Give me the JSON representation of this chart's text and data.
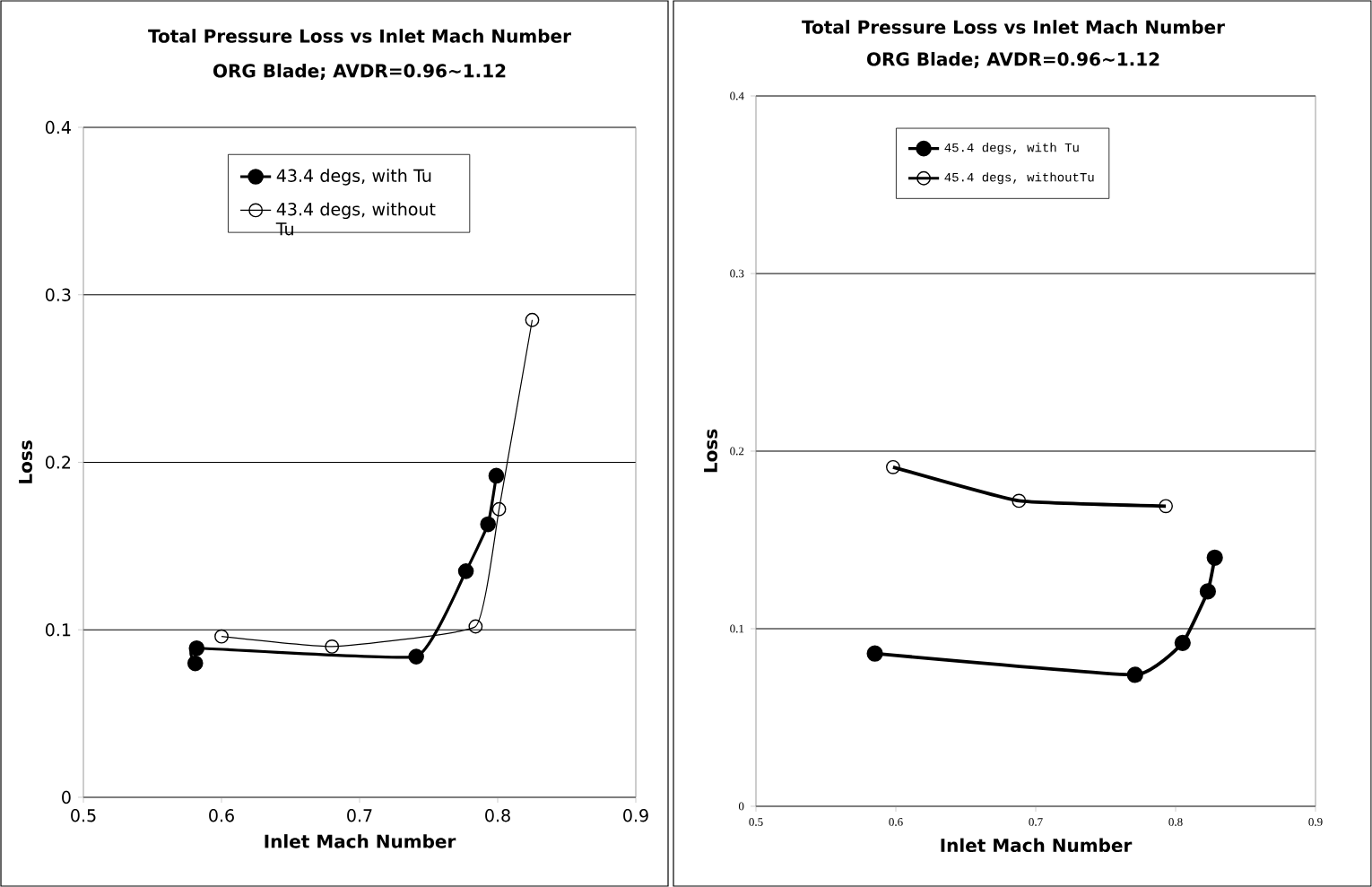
{
  "chart_data": [
    {
      "type": "line",
      "title": "Total Pressure Loss vs Inlet Mach Number",
      "subtitle": "ORG Blade; AVDR=0.96~1.12",
      "xlabel": "Inlet Mach Number",
      "ylabel": "Loss",
      "xlim": [
        0.5,
        0.9
      ],
      "ylim": [
        0,
        0.4
      ],
      "xticks": [
        0.5,
        0.6,
        0.7,
        0.8,
        0.9
      ],
      "yticks": [
        0,
        0.1,
        0.2,
        0.3,
        0.4
      ],
      "grid": "y",
      "legend": "top right",
      "marker": "circle",
      "series": [
        {
          "name": "43.4 degs, with Tu",
          "color": "#000000",
          "x": [
            0.581,
            0.582,
            0.741,
            0.777,
            0.793,
            0.799
          ],
          "values": [
            0.08,
            0.089,
            0.084,
            0.135,
            0.163,
            0.192
          ]
        },
        {
          "name": "43.4 degs, without Tu",
          "color": "#000000",
          "x": [
            0.6,
            0.68,
            0.784,
            0.801,
            0.825
          ],
          "values": [
            0.096,
            0.09,
            0.102,
            0.172,
            0.285
          ]
        }
      ]
    },
    {
      "type": "line",
      "title": "Total Pressure Loss vs Inlet Mach Number",
      "subtitle": "ORG Blade; AVDR=0.96~1.12",
      "xlabel": "Inlet Mach Number",
      "ylabel": "Loss",
      "xlim": [
        0.5,
        0.9
      ],
      "ylim": [
        0,
        0.4
      ],
      "xticks": [
        0.5,
        0.6,
        0.7,
        0.8,
        0.9
      ],
      "yticks": [
        0,
        0.1,
        0.2,
        0.3,
        0.4
      ],
      "grid": "y",
      "legend": "top left",
      "marker": "circle",
      "series": [
        {
          "name": "45.4 degs, with Tu",
          "color": "#000000",
          "x": [
            0.585,
            0.771,
            0.805,
            0.823,
            0.828
          ],
          "values": [
            0.086,
            0.074,
            0.092,
            0.121,
            0.14
          ]
        },
        {
          "name": "45.4 degs, withoutTu",
          "color": "#000000",
          "x": [
            0.598,
            0.688,
            0.793
          ],
          "values": [
            0.191,
            0.172,
            0.169
          ]
        }
      ]
    }
  ]
}
